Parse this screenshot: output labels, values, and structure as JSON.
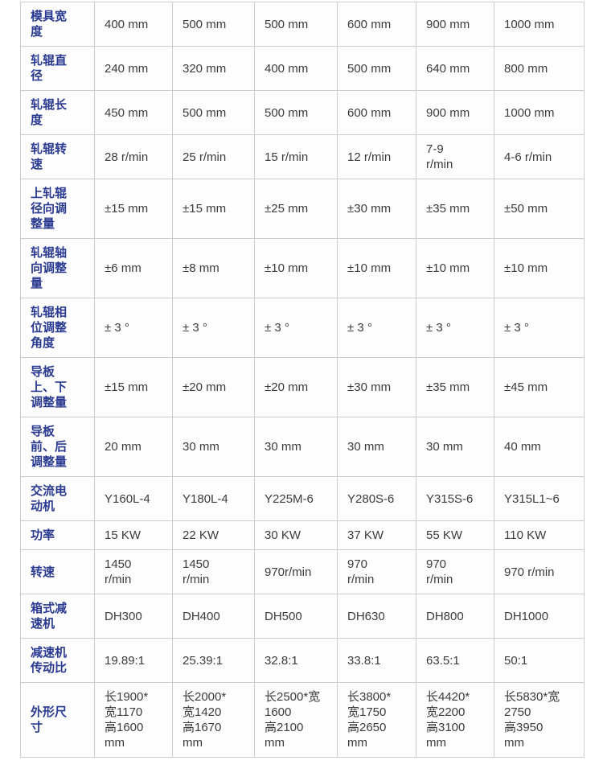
{
  "page": {
    "background_color": "#ffffff"
  },
  "table": {
    "label_color": "#2b3a91",
    "value_color": "#3c3c3c",
    "border_color": "#cccccc",
    "rows": [
      {
        "label": "模具宽\n度",
        "values": [
          "400 mm",
          "500 mm",
          "500 mm",
          "600 mm",
          "900 mm",
          "1000 mm"
        ]
      },
      {
        "label": "轧辊直\n径",
        "values": [
          "240 mm",
          "320 mm",
          "400 mm",
          "500 mm",
          "640 mm",
          "800 mm"
        ]
      },
      {
        "label": "轧辊长\n度",
        "values": [
          "450 mm",
          "500 mm",
          "500 mm",
          "600 mm",
          "900 mm",
          "1000 mm"
        ]
      },
      {
        "label": "轧辊转\n速",
        "values": [
          "28 r/min",
          "25 r/min",
          "15 r/min",
          "12 r/min",
          "7-9\nr/min",
          "4-6 r/min"
        ]
      },
      {
        "label": "上轧辊\n径向调\n整量",
        "values": [
          "±15 mm",
          "±15 mm",
          "±25 mm",
          "±30 mm",
          "±35 mm",
          "±50 mm"
        ]
      },
      {
        "label": "轧辊轴\n向调整\n量",
        "values": [
          "±6 mm",
          "±8 mm",
          "±10 mm",
          "±10 mm",
          "±10 mm",
          "±10 mm"
        ]
      },
      {
        "label": "轧辊相\n位调整\n角度",
        "values": [
          "± 3 °",
          "± 3 °",
          "± 3 °",
          "± 3 °",
          "± 3 °",
          "± 3 °"
        ]
      },
      {
        "label": "导板\n上、下\n调整量",
        "values": [
          "±15 mm",
          "±20 mm",
          "±20 mm",
          "±30 mm",
          "±35 mm",
          "±45 mm"
        ]
      },
      {
        "label": "导板\n前、后\n调整量",
        "values": [
          "20 mm",
          "30 mm",
          "30 mm",
          "30 mm",
          "30 mm",
          "40 mm"
        ]
      },
      {
        "label": "交流电\n动机",
        "values": [
          "Y160L-4",
          "Y180L-4",
          "Y225M-6",
          "Y280S-6",
          "Y315S-6",
          "Y315L1~6"
        ]
      },
      {
        "label": "功率",
        "values": [
          "15 KW",
          "22 KW",
          "30 KW",
          "37 KW",
          "55 KW",
          "110 KW"
        ]
      },
      {
        "label": "转速",
        "values": [
          "1450\nr/min",
          "1450\nr/min",
          "970r/min",
          "970\nr/min",
          "970\nr/min",
          "970 r/min"
        ]
      },
      {
        "label": "箱式减\n速机",
        "values": [
          "DH300",
          "DH400",
          "DH500",
          "DH630",
          "DH800",
          "DH1000"
        ]
      },
      {
        "label": "减速机\n传动比",
        "values": [
          "19.89:1",
          "25.39:1",
          "32.8:1",
          "33.8:1",
          "63.5:1",
          "50:1"
        ]
      },
      {
        "label": "外形尺\n寸",
        "values": [
          "长1900*\n宽1170\n高1600\nmm",
          "长2000*\n宽1420\n高1670\nmm",
          "长2500*宽\n1600\n高2100\nmm",
          "长3800*\n宽1750\n高2650\nmm",
          "长4420*\n宽2200\n高3100\nmm",
          "长5830*宽\n2750\n高3950\nmm"
        ]
      }
    ]
  }
}
